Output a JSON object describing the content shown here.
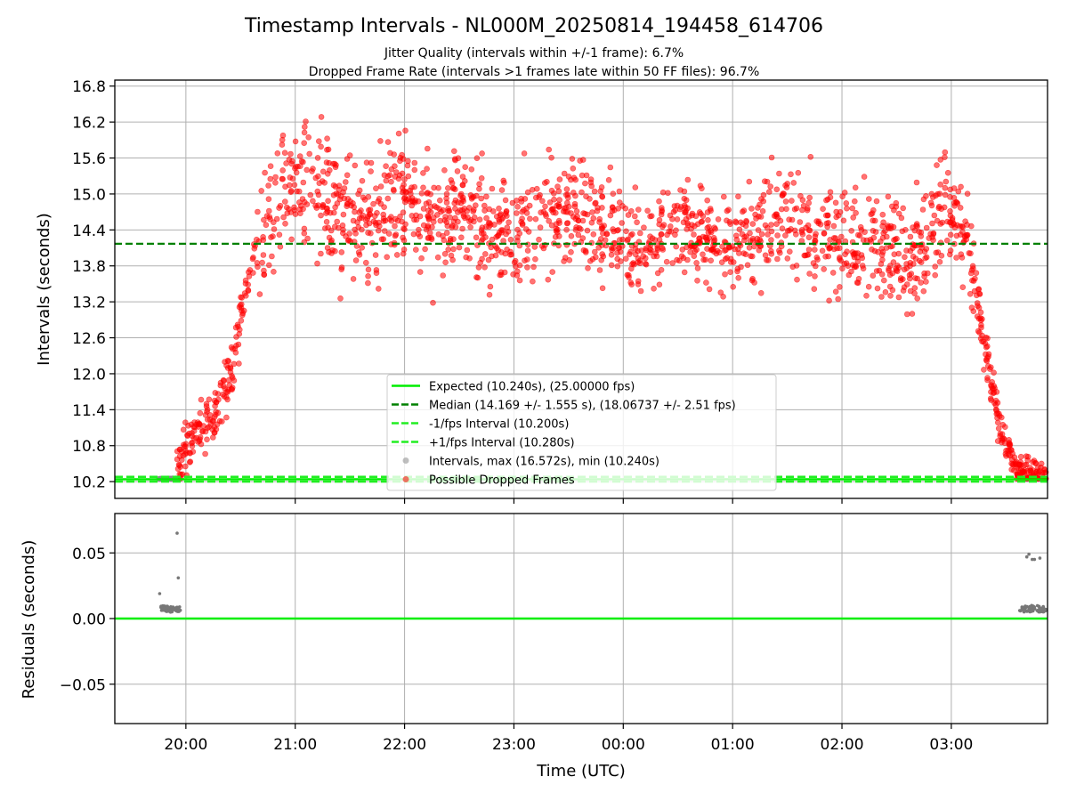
{
  "figure": {
    "title": "Timestamp Intervals - NL000M_20250814_194458_614706",
    "subtitle_line1": "Jitter Quality (intervals within +/-1 frame): 6.7%",
    "subtitle_line2": "Dropped Frame Rate (intervals >1 frames late within 50 FF files): 96.7%"
  },
  "colors": {
    "expected": "#00ee00",
    "median": "#008000",
    "fps_band": "#22ee22",
    "intervals": "#888888",
    "dropped": "#ff0000",
    "grid": "#b0b0b0"
  },
  "chart_data": [
    {
      "type": "scatter",
      "xlabel": "",
      "ylabel": "Intervals (seconds)",
      "x_unit": "hours since 00:00 UTC (values after midnight > 24)",
      "xlim": [
        19.35,
        27.88
      ],
      "ylim": [
        9.92,
        16.9
      ],
      "yticks": [
        "10.2",
        "10.8",
        "11.4",
        "12.0",
        "12.6",
        "13.2",
        "13.8",
        "14.4",
        "15.0",
        "15.6",
        "16.2",
        "16.8"
      ],
      "ytick_values": [
        10.2,
        10.8,
        11.4,
        12.0,
        12.6,
        13.2,
        13.8,
        14.4,
        15.0,
        15.6,
        16.2,
        16.8
      ],
      "grid": true,
      "legend_position": "lower center",
      "lines": {
        "expected": 10.24,
        "median": 14.169,
        "minus_fps": 10.2,
        "plus_fps": 10.28
      },
      "legend": [
        {
          "label": "Expected (10.240s), (25.00000 fps)",
          "kind": "line-solid",
          "color": "#00ee00"
        },
        {
          "label": "Median (14.169 +/- 1.555 s), (18.06737 +/- 2.51 fps)",
          "kind": "line-dashed",
          "color": "#008000"
        },
        {
          "label": "-1/fps Interval (10.200s)",
          "kind": "line-dashed",
          "color": "#22ee22"
        },
        {
          "label": "+1/fps Interval (10.280s)",
          "kind": "line-dashed",
          "color": "#22ee22"
        },
        {
          "label": "Intervals, max (16.572s), min (10.240s)",
          "kind": "marker",
          "color": "#888888"
        },
        {
          "label": "Possible Dropped Frames",
          "kind": "marker",
          "color": "#ff0000"
        }
      ],
      "series": [
        {
          "name": "Intervals, max (16.572s), min (10.240s)",
          "kind": "normal",
          "x_range": [
            [
              19.75,
              19.95
            ],
            [
              27.62,
              27.87
            ]
          ],
          "y_value": 10.247,
          "approx_count": 160
        },
        {
          "name": "Possible Dropped Frames",
          "kind": "dropped",
          "trend_points": [
            [
              19.92,
              10.6
            ],
            [
              20.1,
              10.95
            ],
            [
              20.3,
              11.4
            ],
            [
              20.45,
              12.3
            ],
            [
              20.55,
              13.5
            ],
            [
              20.7,
              14.2
            ],
            [
              20.85,
              15.2
            ],
            [
              21.0,
              15.1
            ],
            [
              21.3,
              14.8
            ],
            [
              21.6,
              14.4
            ],
            [
              22.0,
              15.1
            ],
            [
              22.25,
              14.3
            ],
            [
              22.5,
              15.0
            ],
            [
              22.7,
              14.4
            ],
            [
              23.0,
              14.4
            ],
            [
              23.5,
              14.7
            ],
            [
              23.9,
              14.3
            ],
            [
              24.2,
              14.1
            ],
            [
              24.5,
              14.5
            ],
            [
              25.0,
              14.1
            ],
            [
              25.5,
              14.6
            ],
            [
              25.9,
              14.3
            ],
            [
              26.3,
              14.2
            ],
            [
              26.7,
              14.0
            ],
            [
              26.95,
              14.9
            ],
            [
              27.15,
              14.3
            ],
            [
              27.3,
              12.5
            ],
            [
              27.45,
              11.1
            ],
            [
              27.6,
              10.4
            ],
            [
              27.87,
              10.3
            ]
          ],
          "spread_points": [
            [
              20.0,
              0.35
            ],
            [
              20.6,
              0.5
            ],
            [
              20.8,
              1.1
            ],
            [
              21.3,
              1.0
            ],
            [
              22.0,
              0.8
            ],
            [
              23.0,
              0.9
            ],
            [
              24.0,
              0.7
            ],
            [
              25.0,
              0.7
            ],
            [
              26.0,
              0.8
            ],
            [
              27.0,
              0.9
            ],
            [
              27.3,
              0.4
            ],
            [
              27.6,
              0.2
            ]
          ],
          "approx_count": 1900
        }
      ]
    },
    {
      "type": "scatter",
      "xlabel": "Time (UTC)",
      "ylabel": "Residuals (seconds)",
      "xlim": [
        19.35,
        27.88
      ],
      "ylim": [
        -0.08,
        0.08
      ],
      "xticks": [
        "20:00",
        "21:00",
        "22:00",
        "23:00",
        "00:00",
        "01:00",
        "02:00",
        "03:00"
      ],
      "xtick_values": [
        20,
        21,
        22,
        23,
        24,
        25,
        26,
        27
      ],
      "yticks": [
        "−0.05",
        "0.00",
        "0.05"
      ],
      "ytick_values": [
        -0.05,
        0.0,
        0.05
      ],
      "grid": true,
      "zero_line": 0.0,
      "series": [
        {
          "name": "residuals",
          "points": [
            [
              19.76,
              0.019
            ],
            [
              19.92,
              0.065
            ],
            [
              19.93,
              0.031
            ],
            [
              27.69,
              0.047
            ],
            [
              27.71,
              0.049
            ],
            [
              27.74,
              0.045
            ],
            [
              27.76,
              0.045
            ],
            [
              27.81,
              0.046
            ]
          ],
          "cluster_ranges": [
            [
              19.77,
              19.95,
              0.0072
            ],
            [
              27.62,
              27.87,
              0.0075
            ]
          ]
        }
      ]
    }
  ]
}
